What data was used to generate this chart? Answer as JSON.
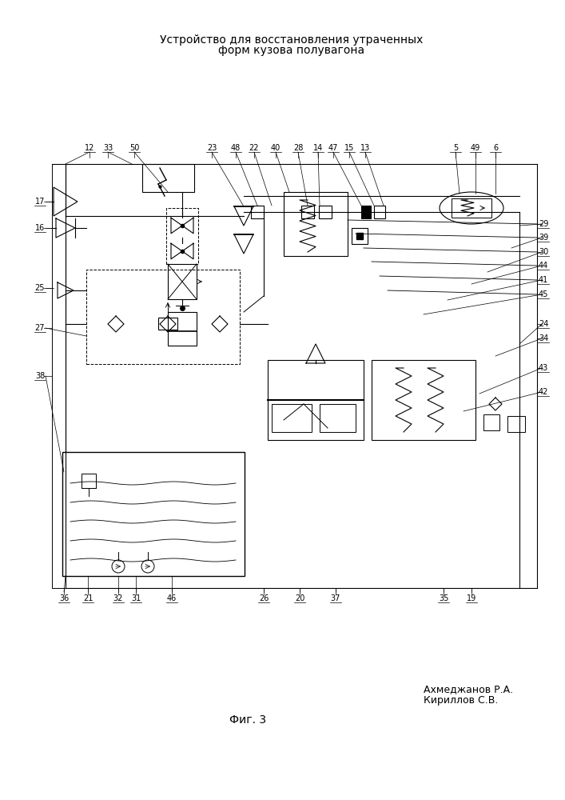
{
  "title_line1": "Устройство для восстановления утраченных",
  "title_line2": "форм кузова полувагона",
  "author1": "Ахмеджанов Р.А.",
  "author2": "Кириллов С.В.",
  "fig_label": "Фиг. 3",
  "bg_color": "#ffffff",
  "line_color": "#000000",
  "font_size_title": 10,
  "font_size_labels": 7,
  "font_size_authors": 9,
  "font_size_fig": 10
}
